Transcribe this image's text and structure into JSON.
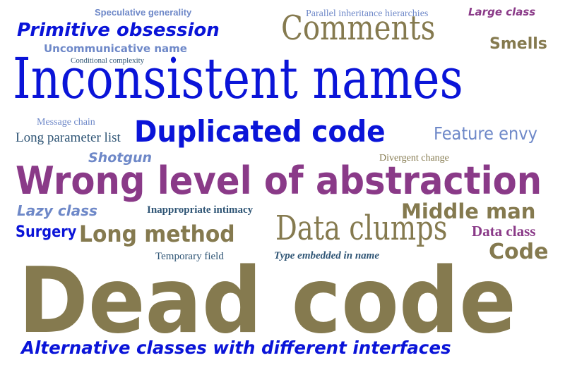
{
  "colors": {
    "blue": "#0a14d8",
    "olive": "#857a4f",
    "purple": "#8a3a88",
    "slate": "#2f5575",
    "lightblue": "#6e88c8"
  },
  "words": {
    "speculative_generality": "Speculative generality",
    "parallel_inheritance": "Parallel inheritance hierarchies",
    "large_class": "Large class",
    "primitive_obsession": "Primitive obsession",
    "comments": "Comments",
    "smells": "Smells",
    "uncommunicative_name": "Uncommunicative name",
    "conditional_complexity": "Conditional complexity",
    "inconsistent_names": "Inconsistent names",
    "message_chain": "Message chain",
    "long_parameter_list": "Long parameter list",
    "duplicated_code": "Duplicated code",
    "feature_envy": "Feature envy",
    "shotgun": "Shotgun",
    "divergent_change": "Divergent change",
    "wrong_level": "Wrong level of abstraction",
    "lazy_class": "Lazy class",
    "inappropriate_intimacy": "Inappropriate intimacy",
    "middle_man": "Middle man",
    "surgery": "Surgery",
    "long_method": "Long method",
    "data_clumps": "Data clumps",
    "data_class": "Data class",
    "code": "Code",
    "temporary_field": "Temporary field",
    "type_embedded": "Type embedded in name",
    "dead_code": "Dead code",
    "alternative_classes": "Alternative classes with different interfaces"
  }
}
